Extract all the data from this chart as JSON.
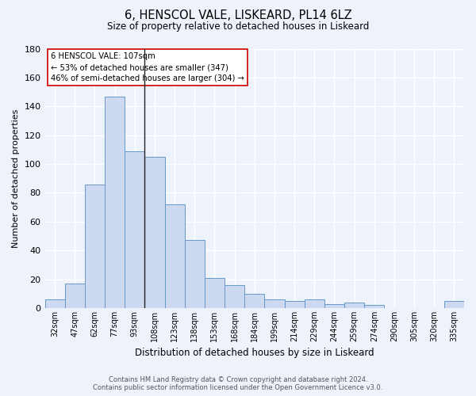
{
  "title": "6, HENSCOL VALE, LISKEARD, PL14 6LZ",
  "subtitle": "Size of property relative to detached houses in Liskeard",
  "xlabel": "Distribution of detached houses by size in Liskeard",
  "ylabel": "Number of detached properties",
  "bar_color": "#ccd9f0",
  "bar_edge_color": "#6699cc",
  "categories": [
    "32sqm",
    "47sqm",
    "62sqm",
    "77sqm",
    "93sqm",
    "108sqm",
    "123sqm",
    "138sqm",
    "153sqm",
    "168sqm",
    "184sqm",
    "199sqm",
    "214sqm",
    "229sqm",
    "244sqm",
    "259sqm",
    "274sqm",
    "290sqm",
    "305sqm",
    "320sqm",
    "335sqm"
  ],
  "values": [
    6,
    17,
    86,
    147,
    109,
    105,
    72,
    47,
    21,
    16,
    10,
    6,
    5,
    6,
    3,
    4,
    2,
    0,
    0,
    0,
    5
  ],
  "ylim": [
    0,
    180
  ],
  "yticks": [
    0,
    20,
    40,
    60,
    80,
    100,
    120,
    140,
    160,
    180
  ],
  "property_bin_index": 5,
  "annotation_line1": "6 HENSCOL VALE: 107sqm",
  "annotation_line2": "← 53% of detached houses are smaller (347)",
  "annotation_line3": "46% of semi-detached houses are larger (304) →",
  "footer1": "Contains HM Land Registry data © Crown copyright and database right 2024.",
  "footer2": "Contains public sector information licensed under the Open Government Licence v3.0.",
  "background_color": "#eef2fb",
  "grid_color": "#ffffff",
  "vline_color": "#222222"
}
